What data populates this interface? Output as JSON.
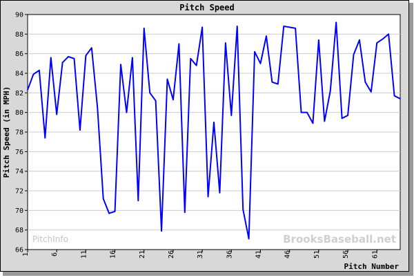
{
  "chart_data": {
    "type": "line",
    "title": "Pitch Speed",
    "xlabel": "Pitch Number",
    "ylabel": "Pitch Speed (in MPH)",
    "ylim": [
      66,
      90
    ],
    "xlim": [
      1,
      65
    ],
    "yticks": [
      66,
      68,
      70,
      72,
      74,
      76,
      78,
      80,
      82,
      84,
      86,
      88,
      90
    ],
    "xticks": [
      1,
      6,
      11,
      16,
      21,
      26,
      31,
      36,
      41,
      46,
      51,
      56,
      61
    ],
    "grid": "horizontal",
    "line_color": "#0000ff",
    "watermarks": {
      "left": "PitchInfo",
      "right": "BrooksBaseball.net"
    },
    "series": [
      {
        "x": [
          1,
          2,
          3,
          4,
          5,
          6,
          7,
          8,
          9,
          10,
          11,
          12,
          13,
          14,
          15,
          16,
          17,
          18,
          19,
          20,
          21,
          22,
          23,
          24,
          25,
          26,
          27,
          28,
          29,
          30,
          31,
          32,
          33,
          34,
          35,
          36,
          37,
          38,
          39,
          40,
          41,
          42,
          43,
          44,
          45,
          46,
          47,
          48,
          49,
          50,
          51,
          52,
          53,
          54,
          55,
          56,
          57,
          58,
          59,
          60,
          61,
          62,
          63,
          64,
          65
        ],
        "values": [
          82.3,
          83.9,
          84.3,
          77.4,
          85.6,
          79.8,
          85.1,
          85.7,
          85.5,
          78.2,
          85.8,
          86.6,
          80.5,
          71.2,
          69.7,
          69.9,
          84.9,
          80.0,
          85.6,
          71.0,
          88.6,
          82.0,
          81.2,
          67.9,
          83.4,
          81.3,
          87.0,
          69.8,
          85.5,
          84.8,
          88.7,
          71.4,
          79.0,
          71.8,
          87.1,
          79.7,
          88.8,
          70.1,
          67.1,
          86.2,
          85.0,
          87.8,
          83.1,
          82.9,
          88.8,
          88.7,
          88.6,
          80.0,
          80.0,
          78.9,
          87.4,
          79.1,
          82.2,
          89.2,
          79.4,
          79.7,
          85.9,
          87.4,
          83.1,
          82.1,
          87.1,
          87.5,
          88.0,
          81.7,
          81.4
        ]
      }
    ]
  }
}
